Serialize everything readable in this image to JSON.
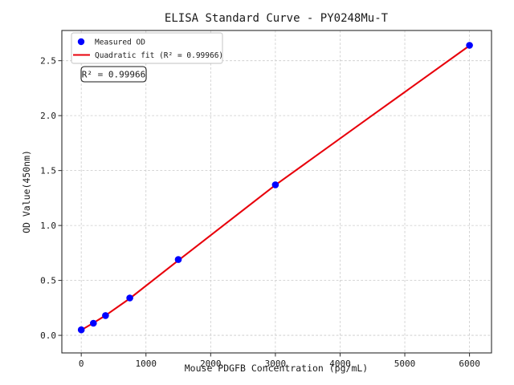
{
  "title": "ELISA Standard Curve - PY0248Mu-T",
  "annotation": {
    "r_squared_label": "R² = 0.99966"
  },
  "legend": {
    "position": "upper left",
    "items": [
      {
        "label": "Measured OD",
        "marker": "dot",
        "color": "#0000ff"
      },
      {
        "label": "Quadratic fit (R² = 0.99966)",
        "marker": "line",
        "color": "#ff0000"
      }
    ]
  },
  "colors": {
    "marker_blue": "#0000ff",
    "fit_red": "#e8000b",
    "grid_gray": "#c9c9c9",
    "spine_dark": "#2b2b2b",
    "legend_border": "#c0c0c0",
    "background": "#ffffff"
  },
  "chart_data": {
    "type": "scatter",
    "title": "ELISA Standard Curve - PY0248Mu-T",
    "xlabel": "Mouse PDGFB Concentration (pg/mL)",
    "ylabel": "OD Value(450nm)",
    "xlim": [
      -300,
      6340
    ],
    "ylim": [
      -0.16,
      2.775
    ],
    "grid": true,
    "legend_position": "upper left",
    "x_ticks": [
      0,
      1000,
      2000,
      3000,
      4000,
      5000,
      6000
    ],
    "x_tick_labels": [
      "0",
      "1000",
      "2000",
      "3000",
      "4000",
      "5000",
      "6000"
    ],
    "y_ticks": [
      0.0,
      0.5,
      1.0,
      1.5,
      2.0,
      2.5
    ],
    "y_tick_labels": [
      "0.0",
      "0.5",
      "1.0",
      "1.5",
      "2.0",
      "2.5"
    ],
    "r_squared": 0.99966,
    "series": [
      {
        "name": "Measured OD",
        "type": "scatter",
        "color": "#0000ff",
        "x": [
          0,
          187.5,
          375,
          750,
          1500,
          3000,
          6000
        ],
        "y": [
          0.05,
          0.11,
          0.18,
          0.34,
          0.69,
          1.37,
          2.64
        ]
      },
      {
        "name": "Quadratic fit (R² = 0.99966)",
        "type": "line",
        "color": "#e8000b",
        "x": [
          0,
          187.5,
          375,
          750,
          1500,
          3000,
          4500,
          6000
        ],
        "y": [
          0.048,
          0.113,
          0.181,
          0.336,
          0.682,
          1.368,
          2.003,
          2.637
        ]
      }
    ]
  }
}
